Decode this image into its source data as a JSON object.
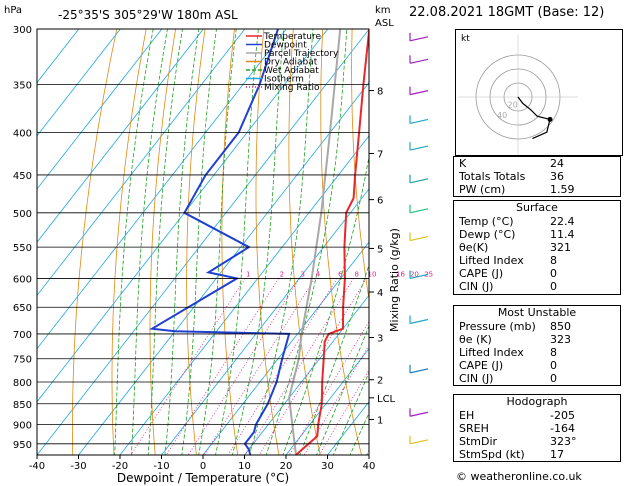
{
  "header": {
    "pressure_unit": "hPa",
    "location": "-25°35'S  305°29'W  180m  ASL",
    "height_unit_top": "km",
    "height_unit_bottom": "ASL",
    "datetime": "22.08.2021  18GMT  (Base: 12)"
  },
  "chart_data": {
    "type": "skew-t",
    "xlabel": "Dewpoint / Temperature (°C)",
    "ylabel_right": "Mixing Ratio (g/kg)",
    "x_ticks": [
      -40,
      -30,
      -20,
      -10,
      0,
      10,
      20,
      30,
      40
    ],
    "pressure_levels": [
      300,
      350,
      400,
      450,
      500,
      550,
      600,
      650,
      700,
      750,
      800,
      850,
      900,
      950
    ],
    "km_ticks": [
      {
        "label": "8",
        "p": 356
      },
      {
        "label": "7",
        "p": 424
      },
      {
        "label": "6",
        "p": 482
      },
      {
        "label": "5",
        "p": 552
      },
      {
        "label": "4",
        "p": 623
      },
      {
        "label": "3",
        "p": 707
      },
      {
        "label": "2",
        "p": 795
      },
      {
        "label": "LCL",
        "p": 836
      },
      {
        "label": "1",
        "p": 888
      }
    ],
    "mixing_ratio_labels": [
      "1",
      "2",
      "3",
      "4",
      "6",
      "8",
      "10",
      "16",
      "20",
      "25"
    ],
    "legend": [
      "Temperature",
      "Dewpoint",
      "Parcel Trajectory",
      "Dry Adiabat",
      "Wet Adiabat",
      "Isotherm",
      "Mixing Ratio"
    ],
    "colors": {
      "temperature": "#e8282a",
      "dewpoint": "#2040d0",
      "parcel": "#a8a8a8",
      "dry_adiabat": "#e08a10",
      "wet_adiabat": "#20a020",
      "isotherm": "#20a8e0",
      "mixing_ratio": "#e0208a"
    },
    "temperature_profile": [
      {
        "p": 980,
        "t": 22.4
      },
      {
        "p": 960,
        "t": 23
      },
      {
        "p": 930,
        "t": 24
      },
      {
        "p": 900,
        "t": 22
      },
      {
        "p": 850,
        "t": 19
      },
      {
        "p": 800,
        "t": 15
      },
      {
        "p": 750,
        "t": 11
      },
      {
        "p": 715,
        "t": 8
      },
      {
        "p": 700,
        "t": 7.5
      },
      {
        "p": 690,
        "t": 10
      },
      {
        "p": 650,
        "t": 6
      },
      {
        "p": 600,
        "t": 1
      },
      {
        "p": 550,
        "t": -5
      },
      {
        "p": 500,
        "t": -11
      },
      {
        "p": 480,
        "t": -12
      },
      {
        "p": 450,
        "t": -16
      },
      {
        "p": 400,
        "t": -23
      },
      {
        "p": 350,
        "t": -31
      },
      {
        "p": 300,
        "t": -40
      }
    ],
    "dewpoint_profile": [
      {
        "p": 980,
        "t": 11.4
      },
      {
        "p": 965,
        "t": 10
      },
      {
        "p": 950,
        "t": 8
      },
      {
        "p": 920,
        "t": 8
      },
      {
        "p": 900,
        "t": 7
      },
      {
        "p": 850,
        "t": 6
      },
      {
        "p": 800,
        "t": 4
      },
      {
        "p": 750,
        "t": 1
      },
      {
        "p": 700,
        "t": -2
      },
      {
        "p": 695,
        "t": -30
      },
      {
        "p": 690,
        "t": -36
      },
      {
        "p": 600,
        "t": -25
      },
      {
        "p": 590,
        "t": -33
      },
      {
        "p": 550,
        "t": -28
      },
      {
        "p": 500,
        "t": -50
      },
      {
        "p": 450,
        "t": -52
      },
      {
        "p": 400,
        "t": -52
      },
      {
        "p": 350,
        "t": -56
      },
      {
        "p": 300,
        "t": -62
      }
    ],
    "parcel_profile": [
      {
        "p": 980,
        "t": 22.4
      },
      {
        "p": 836,
        "t": 10
      },
      {
        "p": 750,
        "t": 5
      },
      {
        "p": 700,
        "t": 1
      },
      {
        "p": 600,
        "t": -7
      },
      {
        "p": 500,
        "t": -17
      },
      {
        "p": 400,
        "t": -30
      },
      {
        "p": 300,
        "t": -47
      }
    ],
    "hodograph": {
      "label": "kt",
      "ring_labels": [
        "20",
        "40"
      ],
      "points": [
        {
          "u": 0,
          "v": 0
        },
        {
          "u": 3,
          "v": -4
        },
        {
          "u": 8,
          "v": -8
        },
        {
          "u": 12,
          "v": -12
        },
        {
          "u": 20,
          "v": -14
        },
        {
          "u": 18,
          "v": -22
        },
        {
          "u": 9,
          "v": -26
        }
      ]
    }
  },
  "indices": [
    {
      "label": "K",
      "value": "24"
    },
    {
      "label": "Totals Totals",
      "value": "36"
    },
    {
      "label": "PW (cm)",
      "value": "1.59"
    }
  ],
  "surface": {
    "title": "Surface",
    "rows": [
      {
        "label": "Temp (°C)",
        "value": "22.4"
      },
      {
        "label": "Dewp (°C)",
        "value": "11.4"
      },
      {
        "label": "θe(K)",
        "value": "321"
      },
      {
        "label": "Lifted Index",
        "value": "8"
      },
      {
        "label": "CAPE (J)",
        "value": "0"
      },
      {
        "label": "CIN (J)",
        "value": "0"
      }
    ]
  },
  "most_unstable": {
    "title": "Most Unstable",
    "rows": [
      {
        "label": "Pressure (mb)",
        "value": "850"
      },
      {
        "label": "θe (K)",
        "value": "323"
      },
      {
        "label": "Lifted Index",
        "value": "8"
      },
      {
        "label": "CAPE (J)",
        "value": "0"
      },
      {
        "label": "CIN (J)",
        "value": "0"
      }
    ]
  },
  "hodograph_table": {
    "title": "Hodograph",
    "rows": [
      {
        "label": "EH",
        "value": "-205"
      },
      {
        "label": "SREH",
        "value": "-164"
      },
      {
        "label": "StmDir",
        "value": "323°"
      },
      {
        "label": "StmSpd (kt)",
        "value": "17"
      }
    ]
  },
  "footer": "© weatheronline.co.uk"
}
